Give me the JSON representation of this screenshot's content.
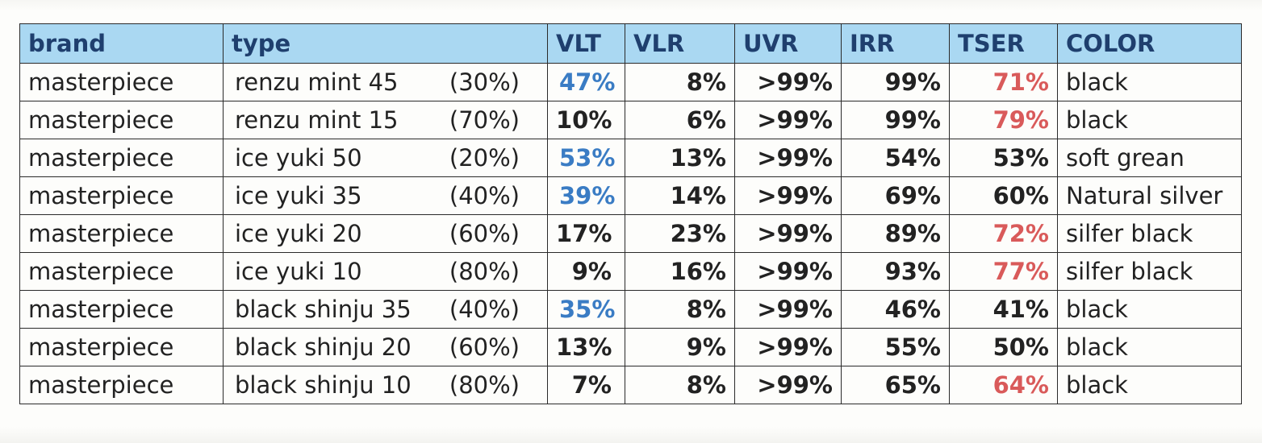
{
  "headers": {
    "brand": "brand",
    "type": "type",
    "vlt": "VLT",
    "vlr": "VLR",
    "uvr": "UVR",
    "irr": "IRR",
    "tser": "TSER",
    "color": "COLOR"
  },
  "colors": {
    "header_bg": "#aad8f2",
    "header_text": "#1f3f6e",
    "vlt_highlight": "#3a7cc4",
    "tser_highlight": "#d95a5a"
  },
  "rows": [
    {
      "brand": "masterpiece",
      "type_name": "renzu mint 45",
      "type_pct": "(30%)",
      "vlt": "47%",
      "vlt_blue": true,
      "vlr": "8%",
      "uvr": ">99%",
      "irr": "99%",
      "tser": "71%",
      "tser_red": true,
      "color": "black"
    },
    {
      "brand": "masterpiece",
      "type_name": "renzu mint 15",
      "type_pct": "(70%)",
      "vlt": "10%",
      "vlt_blue": false,
      "vlr": "6%",
      "uvr": ">99%",
      "irr": "99%",
      "tser": "79%",
      "tser_red": true,
      "color": "black"
    },
    {
      "brand": "masterpiece",
      "type_name": "ice yuki 50",
      "type_pct": "(20%)",
      "vlt": "53%",
      "vlt_blue": true,
      "vlr": "13%",
      "uvr": ">99%",
      "irr": "54%",
      "tser": "53%",
      "tser_red": false,
      "color": "soft grean"
    },
    {
      "brand": "masterpiece",
      "type_name": "ice yuki 35",
      "type_pct": "(40%)",
      "vlt": "39%",
      "vlt_blue": true,
      "vlr": "14%",
      "uvr": ">99%",
      "irr": "69%",
      "tser": "60%",
      "tser_red": false,
      "color": "Natural silver"
    },
    {
      "brand": "masterpiece",
      "type_name": "ice yuki 20",
      "type_pct": "(60%)",
      "vlt": "17%",
      "vlt_blue": false,
      "vlr": "23%",
      "uvr": ">99%",
      "irr": "89%",
      "tser": "72%",
      "tser_red": true,
      "color": "silfer black"
    },
    {
      "brand": "masterpiece",
      "type_name": "ice yuki 10",
      "type_pct": "(80%)",
      "vlt": "9%",
      "vlt_blue": false,
      "vlr": "16%",
      "uvr": ">99%",
      "irr": "93%",
      "tser": "77%",
      "tser_red": true,
      "color": "silfer black"
    },
    {
      "brand": "masterpiece",
      "type_name": "black shinju 35",
      "type_pct": "(40%)",
      "vlt": "35%",
      "vlt_blue": true,
      "vlr": "8%",
      "uvr": ">99%",
      "irr": "46%",
      "tser": "41%",
      "tser_red": false,
      "color": "black"
    },
    {
      "brand": "masterpiece",
      "type_name": "black shinju 20",
      "type_pct": "(60%)",
      "vlt": "13%",
      "vlt_blue": false,
      "vlr": "9%",
      "uvr": ">99%",
      "irr": "55%",
      "tser": "50%",
      "tser_red": false,
      "color": "black"
    },
    {
      "brand": "masterpiece",
      "type_name": "black shinju 10",
      "type_pct": "(80%)",
      "vlt": "7%",
      "vlt_blue": false,
      "vlr": "8%",
      "uvr": ">99%",
      "irr": "65%",
      "tser": "64%",
      "tser_red": true,
      "color": "black"
    }
  ]
}
